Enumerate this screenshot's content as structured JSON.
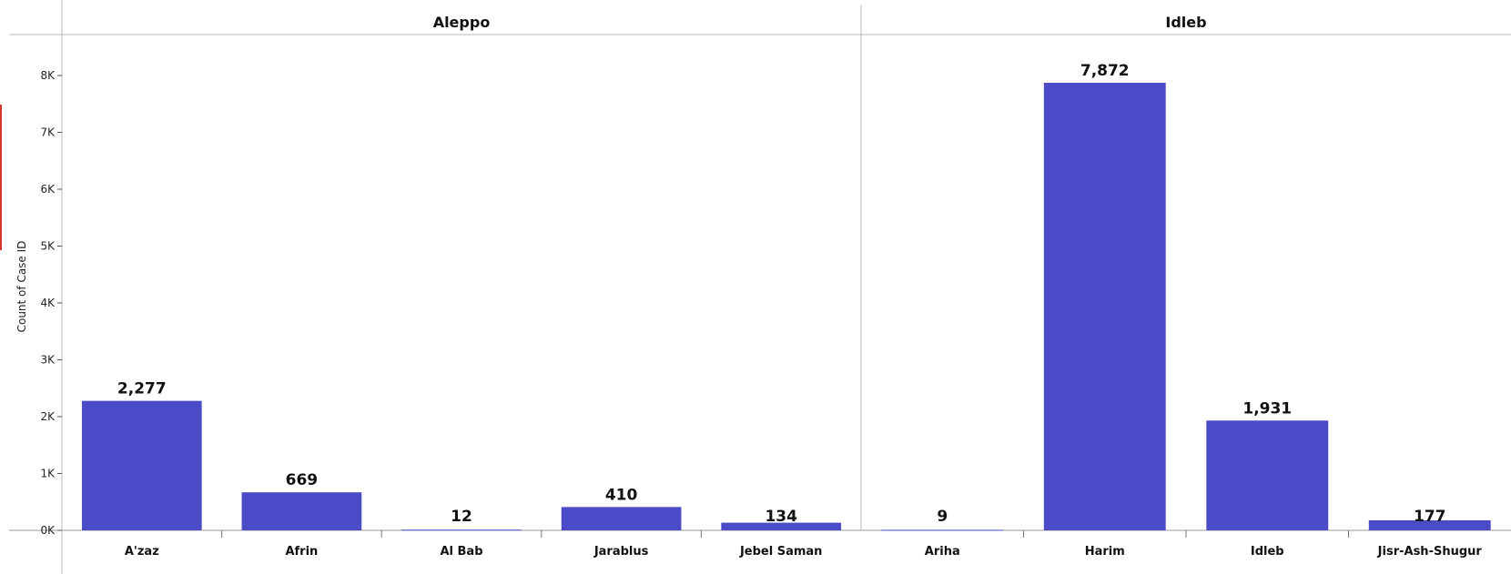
{
  "chart_data": {
    "type": "bar",
    "ylabel": "Count of Case ID",
    "ylim": [
      0,
      8500
    ],
    "yticks": [
      0,
      1000,
      2000,
      3000,
      4000,
      5000,
      6000,
      7000,
      8000
    ],
    "ytick_labels": [
      "0K",
      "1K",
      "2K",
      "3K",
      "4K",
      "5K",
      "6K",
      "7K",
      "8K"
    ],
    "bar_color": "#4b4bc8",
    "grid": false,
    "panels": [
      {
        "title": "Aleppo",
        "categories": [
          "A'zaz",
          "Afrin",
          "Al Bab",
          "Jarablus",
          "Jebel Saman"
        ],
        "values": [
          2277,
          669,
          12,
          410,
          134
        ],
        "labels": [
          "2,277",
          "669",
          "12",
          "410",
          "134"
        ]
      },
      {
        "title": "Idleb",
        "categories": [
          "Ariha",
          "Harim",
          "Idleb",
          "Jisr-Ash-Shugur"
        ],
        "values": [
          9,
          7872,
          1931,
          177
        ],
        "labels": [
          "9",
          "7,872",
          "1,931",
          "177"
        ]
      }
    ]
  }
}
